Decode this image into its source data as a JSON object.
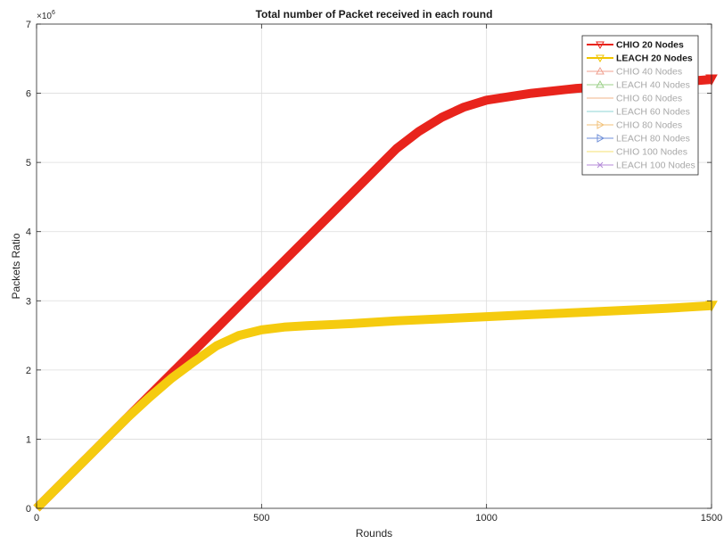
{
  "chart_data": {
    "type": "line",
    "title": "Total number of Packet received in each round",
    "xlabel": "Rounds",
    "ylabel": "Packets Ratio",
    "y_exponent_label": "×10",
    "y_exponent_power": "6",
    "xlim": [
      0,
      1500
    ],
    "ylim": [
      0,
      7
    ],
    "y_scale": 1000000,
    "xticks": [
      0,
      500,
      1000,
      1500
    ],
    "xtick_labels": [
      "0",
      "500",
      "1000",
      "1500"
    ],
    "yticks": [
      0,
      1,
      2,
      3,
      4,
      5,
      6,
      7
    ],
    "ytick_labels": [
      "0",
      "1",
      "2",
      "3",
      "4",
      "5",
      "6",
      "7"
    ],
    "grid": true,
    "legend_position": "top-right",
    "series": [
      {
        "name": "CHIO 20 Nodes",
        "color": "#e8241c",
        "legend_color": "#e8241c",
        "marker": "triangle-down",
        "highlight": true,
        "x": [
          0,
          100,
          200,
          300,
          400,
          500,
          600,
          700,
          800,
          850,
          900,
          950,
          1000,
          1100,
          1200,
          1300,
          1400,
          1500
        ],
        "y": [
          0,
          650000,
          1300000,
          1950000,
          2600000,
          3250000,
          3900000,
          4550000,
          5200000,
          5450000,
          5650000,
          5800000,
          5900000,
          6000000,
          6070000,
          6110000,
          6150000,
          6200000
        ]
      },
      {
        "name": "LEACH 20 Nodes",
        "color": "#f5cb0f",
        "legend_color": "#f0c400",
        "marker": "triangle-down",
        "highlight": true,
        "x": [
          0,
          100,
          200,
          250,
          300,
          350,
          400,
          450,
          500,
          550,
          600,
          700,
          800,
          900,
          1000,
          1100,
          1200,
          1300,
          1400,
          1500
        ],
        "y": [
          0,
          650000,
          1300000,
          1600000,
          1880000,
          2120000,
          2350000,
          2500000,
          2580000,
          2620000,
          2640000,
          2670000,
          2710000,
          2740000,
          2770000,
          2800000,
          2830000,
          2860000,
          2890000,
          2930000
        ]
      },
      {
        "name": "CHIO 40 Nodes",
        "legend_color": "#f0a090",
        "marker": "triangle-up",
        "highlight": false
      },
      {
        "name": "LEACH 40 Nodes",
        "legend_color": "#9cd08a",
        "marker": "triangle-up",
        "highlight": false
      },
      {
        "name": "CHIO 60 Nodes",
        "legend_color": "#f2b48a",
        "marker": "line",
        "highlight": false
      },
      {
        "name": "LEACH 60 Nodes",
        "legend_color": "#8ed4d4",
        "marker": "line",
        "highlight": false
      },
      {
        "name": "CHIO 80 Nodes",
        "legend_color": "#f2c27a",
        "marker": "triangle-right",
        "highlight": false
      },
      {
        "name": "LEACH 80 Nodes",
        "legend_color": "#6f8fd8",
        "marker": "triangle-right",
        "highlight": false
      },
      {
        "name": "CHIO 100 Nodes",
        "legend_color": "#f4e070",
        "marker": "line",
        "highlight": false
      },
      {
        "name": "LEACH 100 Nodes",
        "legend_color": "#b48ad8",
        "marker": "x",
        "highlight": false
      }
    ]
  }
}
